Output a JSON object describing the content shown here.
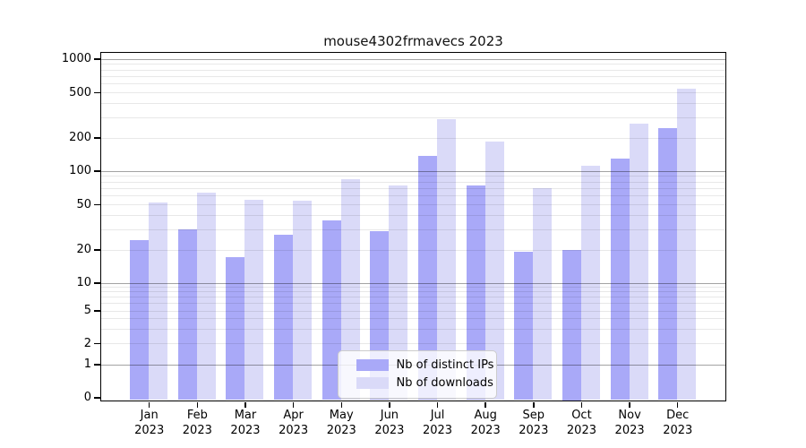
{
  "chart_data": {
    "type": "bar",
    "title": "mouse4302frmavecs 2023",
    "categories": [
      "Jan",
      "Feb",
      "Mar",
      "Apr",
      "May",
      "Jun",
      "Jul",
      "Aug",
      "Sep",
      "Oct",
      "Nov",
      "Dec"
    ],
    "category_year": "2023",
    "series": [
      {
        "name": "Nb of distinct IPs",
        "color": "#a9a9f8",
        "values": [
          24,
          30,
          17,
          27,
          36,
          29,
          137,
          74,
          19,
          20,
          128,
          240
        ]
      },
      {
        "name": "Nb of downloads",
        "color": "#dadaf8",
        "values": [
          52,
          63,
          55,
          54,
          84,
          74,
          292,
          184,
          70,
          110,
          266,
          535
        ]
      }
    ],
    "y_axis": {
      "scale": "log-like",
      "ticks": [
        0,
        1,
        2,
        5,
        10,
        20,
        50,
        100,
        200,
        500,
        1000
      ],
      "range": [
        0,
        1000
      ]
    },
    "x_axis": {
      "tick_label_format": "month over year"
    },
    "legend": {
      "position": "lower center"
    },
    "grid": "horizontal log minor + major (powers of 10 darker), drawn above bars",
    "colors": {
      "background": "#ffffff",
      "spine": "#000000"
    }
  }
}
